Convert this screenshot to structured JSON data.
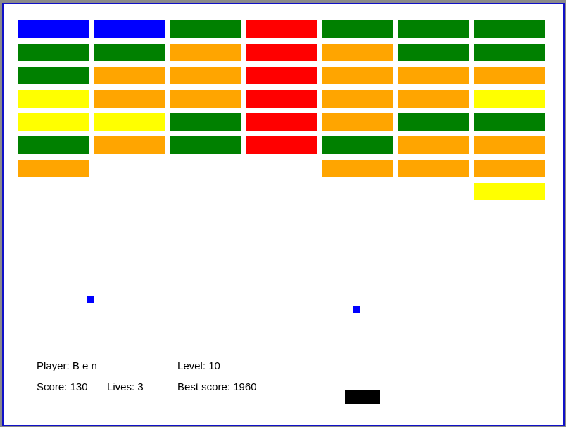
{
  "hud": {
    "player": "Player: B e n",
    "level": "Level: 10",
    "score": "Score: 130",
    "lives": "Lives: 3",
    "best_score": "Best score: 1960"
  }
}
